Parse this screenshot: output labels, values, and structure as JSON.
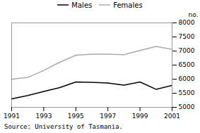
{
  "chart_data": {
    "type": "line",
    "x": [
      1991,
      1992,
      1993,
      1994,
      1995,
      1996,
      1997,
      1998,
      1999,
      2000,
      2001
    ],
    "series": [
      {
        "name": "Males",
        "color": "#000000",
        "values": [
          5300,
          5420,
          5560,
          5700,
          5900,
          5890,
          5860,
          5790,
          5900,
          5640,
          5780
        ]
      },
      {
        "name": "Females",
        "color": "#aaaaaa",
        "values": [
          6000,
          6060,
          6310,
          6600,
          6850,
          6890,
          6890,
          6870,
          7020,
          7160,
          7060
        ]
      }
    ],
    "xlim": [
      1991,
      2001
    ],
    "xticks": [
      1991,
      1993,
      1995,
      1997,
      1999,
      2001
    ],
    "ylim": [
      5000,
      8000
    ],
    "yticks": [
      5000,
      5500,
      6000,
      6500,
      7000,
      7500,
      8000
    ],
    "ylabel": "no.",
    "annotations": [
      "Source: University of Tasmania."
    ],
    "legend": "top",
    "grid": false
  }
}
